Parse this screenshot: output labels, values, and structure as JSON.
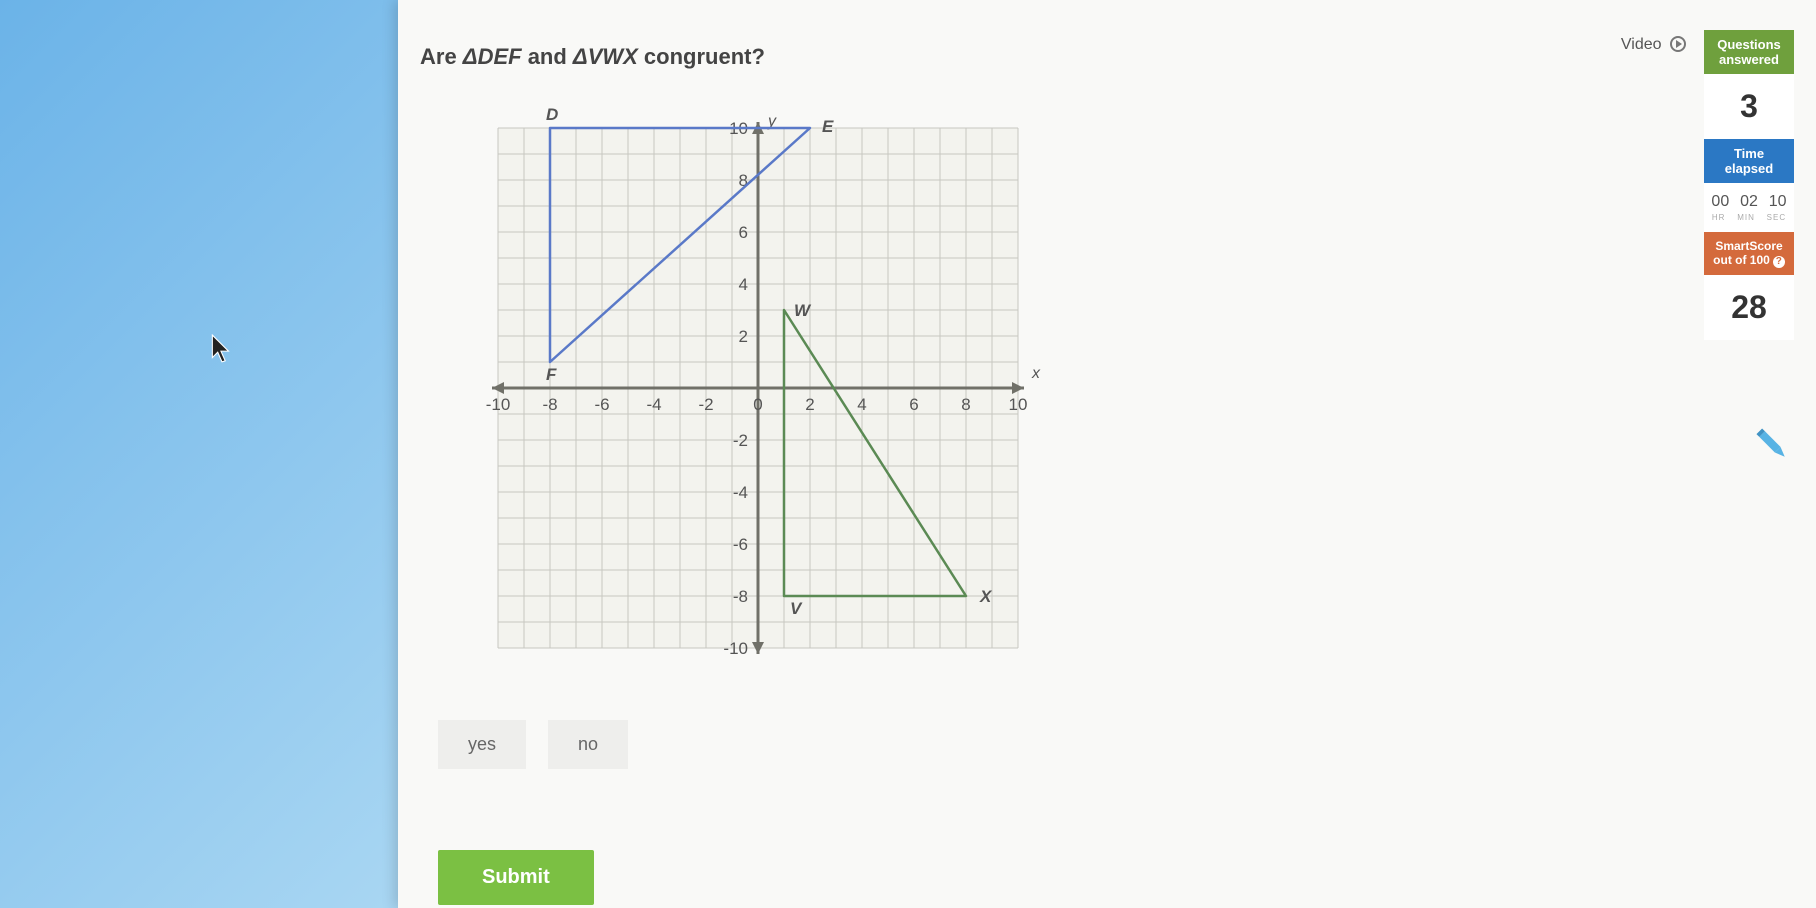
{
  "question": {
    "prefix": "Are ",
    "t1": "ΔDEF",
    "mid": " and ",
    "t2": "ΔVWX",
    "suffix": " congruent?"
  },
  "topbar": {
    "video": "Video"
  },
  "side": {
    "qa_label": "Questions answered",
    "qa_value": "3",
    "time_label": "Time elapsed",
    "time": {
      "hr": "00",
      "min": "02",
      "sec": "10",
      "hr_l": "HR",
      "min_l": "MIN",
      "sec_l": "SEC"
    },
    "ss_label": "SmartScore out of 100",
    "ss_value": "28"
  },
  "answers": {
    "yes": "yes",
    "no": "no"
  },
  "submit": "Submit",
  "chart": {
    "xlim": [
      -10,
      10
    ],
    "ylim": [
      -10,
      10
    ],
    "tick_step": 2,
    "x_ticks": [
      "-10",
      "-8",
      "-6",
      "-4",
      "-2",
      "0",
      "2",
      "4",
      "6",
      "8",
      "10"
    ],
    "y_ticks_pos": [
      "2",
      "4",
      "6",
      "8",
      "10"
    ],
    "y_ticks_neg": [
      "-2",
      "-4",
      "-6",
      "-8",
      "-10"
    ],
    "x_label": "x",
    "y_label": "y",
    "grid_color": "#c7c7c0",
    "axis_color": "#707068",
    "bg_color": "#f3f3ee",
    "tick_font": 17,
    "label_fontsize": 16,
    "triangles": {
      "DEF": {
        "color": "#5a79c8",
        "fill": "none",
        "line_width": 2.5,
        "points": {
          "D": [
            -8,
            10
          ],
          "E": [
            2,
            10
          ],
          "F": [
            -8,
            1
          ]
        },
        "labels": {
          "D": "D",
          "E": "E",
          "F": "F"
        }
      },
      "VWX": {
        "color": "#5b8a54",
        "fill": "none",
        "line_width": 2.5,
        "points": {
          "V": [
            1,
            -8
          ],
          "W": [
            1,
            3
          ],
          "X": [
            8,
            -8
          ]
        },
        "labels": {
          "V": "V",
          "W": "W",
          "X": "X"
        }
      }
    }
  }
}
